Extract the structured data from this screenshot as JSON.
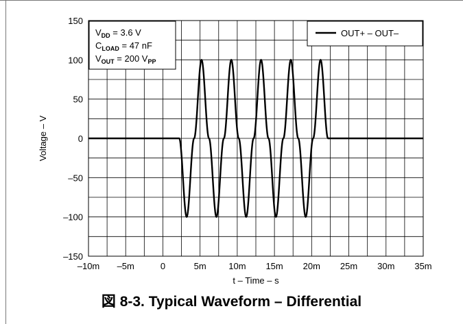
{
  "caption": "図 8-3. Typical Waveform – Differential",
  "chart_data": {
    "type": "line",
    "title": "",
    "xlabel": "t – Time – s",
    "ylabel": "Voltage – V",
    "xlim": [
      -0.01,
      0.035
    ],
    "ylim": [
      -150,
      150
    ],
    "grid": true,
    "x_ticks": [
      -0.01,
      -0.005,
      0,
      0.005,
      0.01,
      0.015,
      0.02,
      0.025,
      0.03,
      0.035
    ],
    "x_tick_labels": [
      "–10m",
      "–5m",
      "0",
      "5m",
      "10m",
      "15m",
      "20m",
      "25m",
      "30m",
      "35m"
    ],
    "y_ticks": [
      -150,
      -100,
      -50,
      0,
      50,
      100,
      150
    ],
    "y_tick_labels": [
      "–150",
      "–100",
      "–50",
      "0",
      "50",
      "100",
      "150"
    ],
    "legend": {
      "placement": "top-right",
      "entries": [
        "OUT+ – OUT–"
      ]
    },
    "annotation": {
      "lines": [
        {
          "main": "V",
          "sub": "DD",
          "rest": " = 3.6 V"
        },
        {
          "main": "C",
          "sub": "LOAD",
          "rest": " = 47 nF"
        },
        {
          "main": "V",
          "sub": "OUT",
          "rest": " = 200 V",
          "sub2": "PP"
        }
      ]
    },
    "series": [
      {
        "name": "OUT+ – OUT–",
        "x": [
          -0.01,
          0.0015,
          0.0022,
          0.0032,
          0.0042,
          0.0052,
          0.0062,
          0.0072,
          0.0082,
          0.0092,
          0.0102,
          0.0112,
          0.0122,
          0.0132,
          0.0142,
          0.0152,
          0.0162,
          0.0172,
          0.0182,
          0.0192,
          0.0202,
          0.0212,
          0.0222,
          0.0232,
          0.035
        ],
        "y": [
          0,
          0,
          0,
          -100,
          0,
          100,
          0,
          -100,
          0,
          100,
          0,
          -100,
          0,
          100,
          0,
          -100,
          0,
          100,
          0,
          -100,
          0,
          100,
          0,
          0,
          0
        ]
      }
    ],
    "colors": {
      "line": "#000000",
      "grid": "#000000"
    }
  }
}
